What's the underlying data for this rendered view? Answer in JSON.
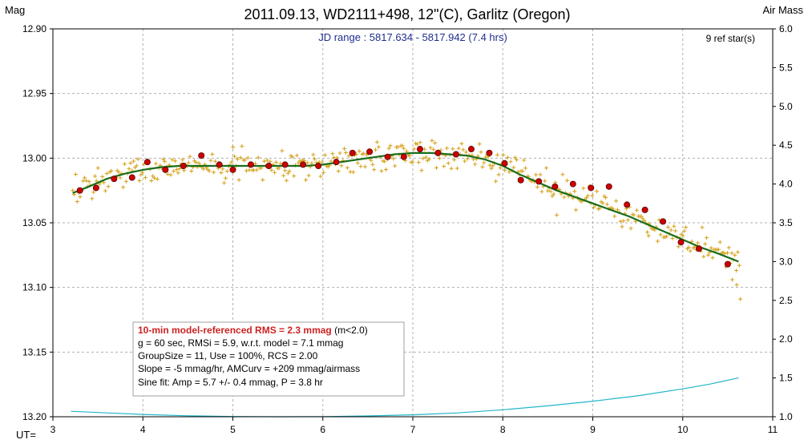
{
  "chart_data": {
    "type": "scatter",
    "title": "2011.09.13, WD2111+498, 12\"(C), Garlitz (Oregon)",
    "ylabel": "Mag",
    "y2label": "Air Mass",
    "xlabel": "UT=",
    "xlim": [
      3,
      11
    ],
    "ylim": [
      13.2,
      12.9
    ],
    "y2lim": [
      1.0,
      6.0
    ],
    "x_ticks": [
      3,
      4,
      5,
      6,
      7,
      8,
      9,
      10,
      11
    ],
    "y_ticks": [
      "12.90",
      "12.95",
      "13.00",
      "13.05",
      "13.10",
      "13.15",
      "13.20"
    ],
    "y2_ticks": [
      "6.0",
      "5.5",
      "5.0",
      "4.5",
      "4.0",
      "3.5",
      "3.0",
      "2.5",
      "2.0",
      "1.5",
      "1.0"
    ],
    "grid": true,
    "jd_range": "JD range : 5817.634 - 5817.942 (7.4 hrs)",
    "ref_stars": "9 ref star(s)",
    "info_box": {
      "line1": "10-min model-referenced RMS = 2.3 mmag",
      "line1_suffix": " (m<2.0)",
      "line2": "g = 60 sec, RMSi = 5.9, w.r.t. model = 7.1 mmag",
      "line3": "GroupSize = 11, Use = 100%, RCS = 2.00",
      "line4": "Slope = -5 mmag/hr, AMCurv = +209 mmag/airmass",
      "line5": "Sine fit: Amp = 5.7 +/- 0.4 mmag, P = 3.8 hr"
    },
    "colors": {
      "points": "#d4a017",
      "binned": "#cc0000",
      "model": "#1a6e1a",
      "airmass": "#22b5c8",
      "highlight": "#cc2222",
      "sine": "#2a3fa0"
    },
    "series": [
      {
        "name": "model",
        "x": [
          3.22,
          3.4,
          3.6,
          3.8,
          4.0,
          4.2,
          4.4,
          4.6,
          4.8,
          5.0,
          5.2,
          5.4,
          5.6,
          5.8,
          6.0,
          6.2,
          6.4,
          6.6,
          6.8,
          7.0,
          7.2,
          7.4,
          7.6,
          7.8,
          8.0,
          8.2,
          8.4,
          8.6,
          8.8,
          9.0,
          9.2,
          9.4,
          9.6,
          9.8,
          10.0,
          10.2,
          10.4,
          10.62
        ],
        "y": [
          13.027,
          13.022,
          13.016,
          13.012,
          13.009,
          13.007,
          13.006,
          13.006,
          13.006,
          13.006,
          13.006,
          13.006,
          13.006,
          13.006,
          13.005,
          13.003,
          13.001,
          12.999,
          12.997,
          12.996,
          12.996,
          12.997,
          12.998,
          13.001,
          13.006,
          13.013,
          13.019,
          13.025,
          13.03,
          13.035,
          13.04,
          13.045,
          13.051,
          13.057,
          13.063,
          13.069,
          13.074,
          13.08
        ]
      },
      {
        "name": "10-min bins",
        "x": [
          3.3,
          3.48,
          3.68,
          3.88,
          4.05,
          4.25,
          4.45,
          4.65,
          4.85,
          5.0,
          5.2,
          5.4,
          5.58,
          5.78,
          5.95,
          6.15,
          6.33,
          6.52,
          6.72,
          6.9,
          7.08,
          7.28,
          7.48,
          7.65,
          7.85,
          8.02,
          8.2,
          8.4,
          8.58,
          8.78,
          8.98,
          9.18,
          9.38,
          9.58,
          9.78,
          9.98,
          10.18,
          10.5
        ],
        "y": [
          13.025,
          13.023,
          13.016,
          13.015,
          13.003,
          13.009,
          13.006,
          12.998,
          13.005,
          13.009,
          13.005,
          13.006,
          13.005,
          13.005,
          13.006,
          13.003,
          12.996,
          12.995,
          12.999,
          12.999,
          12.993,
          12.996,
          12.997,
          12.993,
          12.996,
          13.004,
          13.017,
          13.018,
          13.022,
          13.02,
          13.023,
          13.022,
          13.036,
          13.04,
          13.049,
          13.065,
          13.07,
          13.082
        ]
      },
      {
        "name": "air mass",
        "x": [
          3.2,
          3.6,
          4.0,
          4.5,
          5.0,
          5.5,
          6.0,
          6.5,
          7.0,
          7.5,
          8.0,
          8.5,
          9.0,
          9.5,
          10.0,
          10.3,
          10.62
        ],
        "y": [
          1.07,
          1.05,
          1.03,
          1.012,
          1.003,
          1.0,
          1.002,
          1.01,
          1.025,
          1.05,
          1.09,
          1.14,
          1.2,
          1.27,
          1.36,
          1.42,
          1.5
        ]
      }
    ]
  }
}
